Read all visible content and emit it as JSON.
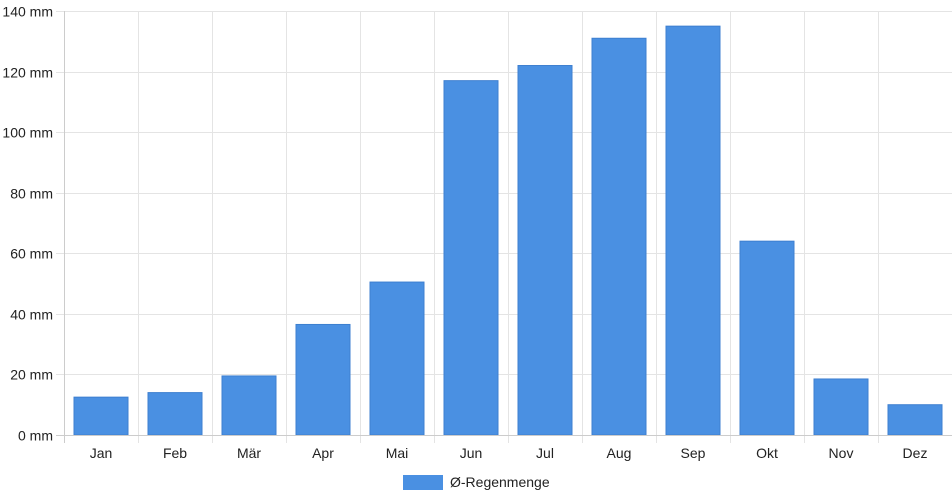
{
  "chart_data": {
    "type": "bar",
    "categories": [
      "Jan",
      "Feb",
      "Mär",
      "Apr",
      "Mai",
      "Jun",
      "Jul",
      "Aug",
      "Sep",
      "Okt",
      "Nov",
      "Dez"
    ],
    "series": [
      {
        "name": "Ø-Regenmenge",
        "values": [
          12.5,
          14,
          19.5,
          36.5,
          50.5,
          117,
          122,
          131,
          135,
          64,
          18.5,
          10
        ],
        "color": "#4a90e2"
      }
    ],
    "y_ticks": [
      0,
      20,
      40,
      60,
      80,
      100,
      120,
      140
    ],
    "y_unit": "mm",
    "ylim": [
      0,
      140
    ],
    "grid": true,
    "legend_position": "bottom-center"
  }
}
